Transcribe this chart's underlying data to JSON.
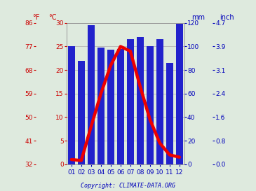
{
  "months": [
    "01",
    "02",
    "03",
    "04",
    "05",
    "06",
    "07",
    "08",
    "09",
    "10",
    "11",
    "12"
  ],
  "precipitation_mm": [
    100,
    88,
    118,
    99,
    97,
    98,
    106,
    108,
    100,
    106,
    86,
    120
  ],
  "temperature_c": [
    1.0,
    0.8,
    8.0,
    15.0,
    21.0,
    25.0,
    24.0,
    16.5,
    9.5,
    4.5,
    2.0,
    1.5
  ],
  "bar_color": "#2222cc",
  "line_color": "#ee0000",
  "bg_color": "#deeade",
  "red_color": "#cc0000",
  "blue_color": "#0000bb",
  "celsius_ticks": [
    0,
    5,
    10,
    15,
    20,
    25,
    30
  ],
  "fahrenheit_ticks": [
    32,
    41,
    50,
    59,
    68,
    77,
    86
  ],
  "mm_ticks": [
    0,
    20,
    40,
    60,
    80,
    100,
    120
  ],
  "inch_ticks": [
    "0.0",
    "0.8",
    "1.6",
    "2.4",
    "3.1",
    "3.9",
    "4.7"
  ],
  "copyright": "Copyright: CLIMATE-DATA.ORG",
  "ylim_temp_c": [
    0,
    30
  ],
  "ylim_precip_mm": [
    0,
    120
  ],
  "line_width": 3.2,
  "grid_color": "#bbbbbb"
}
